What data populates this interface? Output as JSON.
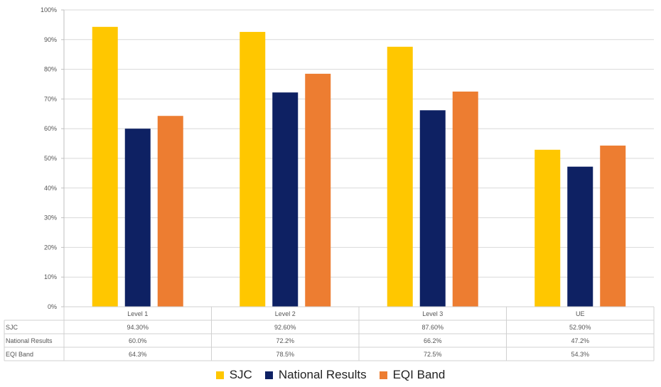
{
  "chart_data": {
    "type": "bar",
    "categories": [
      "Level 1",
      "Level 2",
      "Level 3",
      "UE"
    ],
    "series": [
      {
        "name": "SJC",
        "values": [
          94.3,
          92.6,
          87.6,
          52.9
        ],
        "color": "#FFC700",
        "table_labels": [
          "94.30%",
          "92.60%",
          "87.60%",
          "52.90%"
        ]
      },
      {
        "name": "National Results",
        "values": [
          60.0,
          72.2,
          66.2,
          47.2
        ],
        "color": "#0E2163",
        "table_labels": [
          "60.0%",
          "72.2%",
          "66.2%",
          "47.2%"
        ]
      },
      {
        "name": "EQI Band",
        "values": [
          64.3,
          78.5,
          72.5,
          54.3
        ],
        "color": "#ED7D31",
        "table_labels": [
          "64.3%",
          "78.5%",
          "72.5%",
          "54.3%"
        ]
      }
    ],
    "ylim": [
      0,
      100
    ],
    "yticks": [
      0,
      10,
      20,
      30,
      40,
      50,
      60,
      70,
      80,
      90,
      100
    ],
    "ytick_labels": [
      "0%",
      "10%",
      "20%",
      "30%",
      "40%",
      "50%",
      "60%",
      "70%",
      "80%",
      "90%",
      "100%"
    ],
    "grid": true,
    "legend_position": "bottom",
    "data_table": true
  }
}
